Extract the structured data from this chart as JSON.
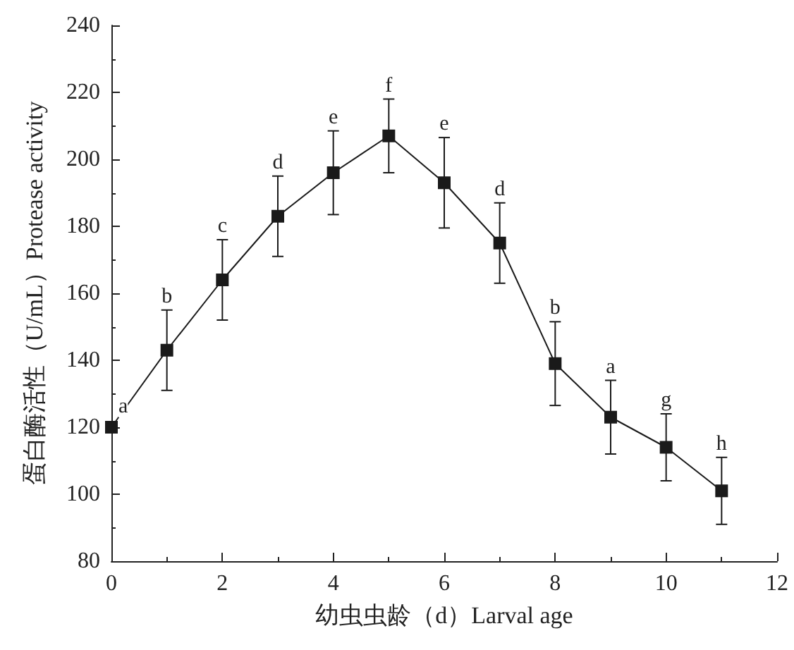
{
  "chart_data": {
    "type": "line",
    "xlabel": "幼虫虫龄（d）Larval age",
    "ylabel": "蛋白酶活性（U/mL）Protease activity",
    "x": [
      0,
      1,
      2,
      3,
      4,
      5,
      6,
      7,
      8,
      9,
      10,
      11
    ],
    "series": [
      {
        "color": "#1a1a1a",
        "values": [
          120,
          143,
          164,
          183,
          196,
          207,
          193,
          175,
          139,
          123,
          114,
          101
        ],
        "errors": [
          null,
          12,
          12,
          12,
          12.5,
          11,
          13.5,
          12,
          12.5,
          11,
          10,
          10
        ]
      }
    ],
    "xlim": [
      0,
      12
    ],
    "xticks": [
      0,
      2,
      4,
      6,
      8,
      10,
      12
    ],
    "ylim": [
      80,
      240
    ],
    "yticks": [
      80,
      100,
      120,
      140,
      160,
      180,
      200,
      220,
      240
    ],
    "grid": false,
    "marker": "square",
    "line_style": "solid",
    "annotations": [
      {
        "text": "a",
        "x": 0,
        "y": 120
      },
      {
        "text": "b",
        "x": 1,
        "y": 155
      },
      {
        "text": "c",
        "x": 2,
        "y": 176
      },
      {
        "text": "d",
        "x": 3,
        "y": 195
      },
      {
        "text": "e",
        "x": 4,
        "y": 208.5
      },
      {
        "text": "f",
        "x": 5,
        "y": 218
      },
      {
        "text": "e",
        "x": 6,
        "y": 206.5
      },
      {
        "text": "d",
        "x": 7,
        "y": 187
      },
      {
        "text": "b",
        "x": 8,
        "y": 151.5
      },
      {
        "text": "a",
        "x": 9,
        "y": 134
      },
      {
        "text": "g",
        "x": 10,
        "y": 124
      },
      {
        "text": "h",
        "x": 11,
        "y": 111
      }
    ]
  }
}
